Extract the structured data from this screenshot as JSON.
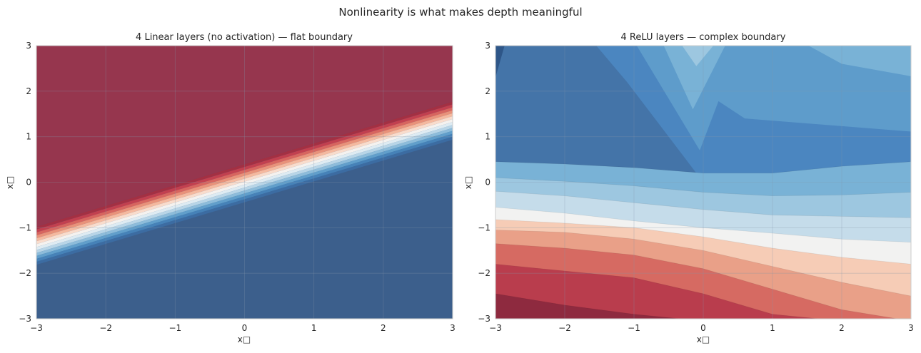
{
  "figure": {
    "suptitle": "Nonlinearity is what makes depth meaningful"
  },
  "colors": {
    "linear_upper_red": "#96364e",
    "linear_lower_blue": "#3c5f8c",
    "deep_blue": "#4474a8",
    "mid_blue": "#4b86c0",
    "light_blue": "#5e9ccb",
    "paler_blue": "#79b2d6",
    "palest_blue": "#9dc7e0",
    "white_band": "#f2f2f1",
    "pale_red": "#f6ccb6",
    "salmon": "#e9a088",
    "red": "#d66a62",
    "crimson": "#b93d4d",
    "dark_crimson": "#8e2a3f",
    "gridline": "#8494a8",
    "axes_edge": "#cccccc"
  },
  "chart_data": [
    {
      "type": "contour",
      "title": "4 Linear layers (no activation) — flat boundary",
      "xlabel": "x□",
      "ylabel": "x□",
      "xlim": [
        -3,
        3
      ],
      "ylim": [
        -3,
        3
      ],
      "xticks": [
        -3,
        -2,
        -1,
        0,
        1,
        2,
        3
      ],
      "yticks": [
        -3,
        -2,
        -1,
        0,
        1,
        2,
        3
      ],
      "xtick_labels": [
        "−3",
        "−2",
        "−1",
        "0",
        "1",
        "2",
        "3"
      ],
      "ytick_labels": [
        "−3",
        "−2",
        "−1",
        "0",
        "1",
        "2",
        "3"
      ],
      "grid": true,
      "colormap": "RdBu",
      "boundary_line": {
        "slope": 0.458,
        "intercept": -0.02
      },
      "transition_band_halfwidth": 0.42
    },
    {
      "type": "contour",
      "title": "4 ReLU layers — complex boundary",
      "xlabel": "x□",
      "ylabel": "x□",
      "xlim": [
        -3,
        3
      ],
      "ylim": [
        -3,
        3
      ],
      "xticks": [
        -3,
        -2,
        -1,
        0,
        1,
        2,
        3
      ],
      "yticks": [
        -3,
        -2,
        -1,
        0,
        1,
        2,
        3
      ],
      "xtick_labels": [
        "−3",
        "−2",
        "−1",
        "0",
        "1",
        "2",
        "3"
      ],
      "ytick_labels": [
        "−3",
        "−2",
        "−1",
        "0",
        "1",
        "2",
        "3"
      ],
      "grid": true,
      "colormap": "RdBu",
      "contour_lines": [
        {
          "x": [
            -3,
            -2,
            -1,
            0,
            1,
            2,
            3
          ],
          "y": [
            0.45,
            0.4,
            0.32,
            0.2,
            0.2,
            0.35,
            0.45
          ]
        },
        {
          "x": [
            -3,
            -2,
            -1,
            0,
            1,
            2,
            3
          ],
          "y": [
            0.1,
            0.02,
            -0.08,
            -0.22,
            -0.3,
            -0.28,
            -0.22
          ]
        },
        {
          "x": [
            -3,
            -2,
            -1,
            0,
            1,
            2,
            3
          ],
          "y": [
            -0.2,
            -0.3,
            -0.45,
            -0.6,
            -0.72,
            -0.75,
            -0.78
          ]
        },
        {
          "x": [
            -3,
            -2,
            -1,
            0,
            1,
            2,
            3
          ],
          "y": [
            -0.55,
            -0.68,
            -0.85,
            -1.0,
            -1.12,
            -1.25,
            -1.32
          ]
        },
        {
          "x": [
            -3,
            -2,
            -1,
            0,
            1,
            2,
            3
          ],
          "y": [
            -0.82,
            -0.9,
            -1.0,
            -1.2,
            -1.45,
            -1.65,
            -1.8
          ]
        },
        {
          "x": [
            -3,
            -2,
            -1,
            0,
            1,
            2,
            3
          ],
          "y": [
            -1.05,
            -1.1,
            -1.25,
            -1.5,
            -1.85,
            -2.2,
            -2.5
          ]
        },
        {
          "x": [
            -3,
            -2,
            -1,
            0,
            1,
            2,
            3
          ],
          "y": [
            -1.35,
            -1.45,
            -1.6,
            -1.9,
            -2.35,
            -2.8,
            -3.05
          ]
        },
        {
          "x": [
            -3,
            -2,
            -1,
            0,
            1,
            2,
            3
          ],
          "y": [
            -1.8,
            -1.95,
            -2.1,
            -2.45,
            -2.9,
            -3.05,
            -3.05
          ]
        },
        {
          "x": [
            -3,
            -2,
            -1,
            0,
            1,
            2,
            3
          ],
          "y": [
            -2.45,
            -2.7,
            -2.9,
            -3.05,
            -3.05,
            -3.05,
            -3.05
          ]
        }
      ],
      "band_colors": [
        "#4b86c0",
        "#5e9ccb",
        "#79b2d6",
        "#9dc7e0",
        "#c5dcea",
        "#f2f2f1",
        "#f6ccb6",
        "#e9a088",
        "#d66a62",
        "#b93d4d",
        "#8e2a3f"
      ]
    }
  ]
}
